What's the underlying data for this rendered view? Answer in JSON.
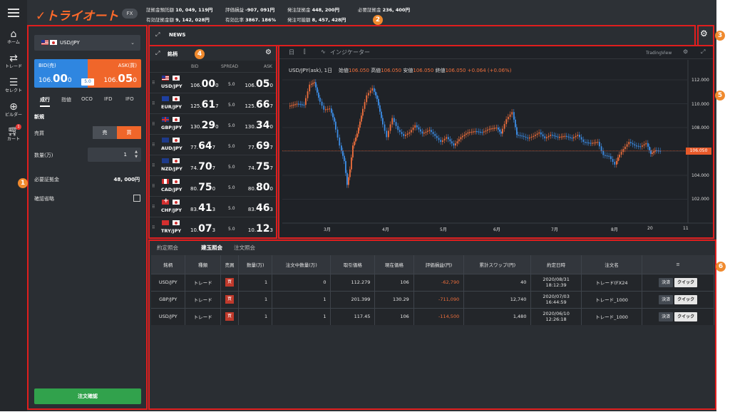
{
  "nav": {
    "items": [
      {
        "label": "ホーム",
        "icon": "home-icon"
      },
      {
        "label": "トレード",
        "icon": "trade-icon"
      },
      {
        "label": "セレクト",
        "icon": "select-icon"
      },
      {
        "label": "ビルダー",
        "icon": "builder-icon"
      },
      {
        "label": "カート",
        "icon": "cart-icon"
      }
    ],
    "cart_badge": "1"
  },
  "header": {
    "logo": "トライオート",
    "mode": "FX",
    "stats_line1": [
      {
        "label": "証拠金預託額",
        "value": "10, 049, 119円"
      },
      {
        "label": "評価損益",
        "value": "-907, 091円"
      },
      {
        "label": "発注証拠金",
        "value": "448, 200円"
      },
      {
        "label": "必要証拠金",
        "value": "236, 400円"
      }
    ],
    "stats_line2": [
      {
        "label": "有効証拠金額",
        "value": "9, 142, 028円"
      },
      {
        "label": "有効比率",
        "value": "3867. 186%"
      },
      {
        "label": "発注可能額",
        "value": "8, 457, 428円"
      }
    ]
  },
  "markers": [
    "1",
    "2",
    "3",
    "4",
    "5",
    "6"
  ],
  "order": {
    "pair": "USD/JPY",
    "bid_label": "BID(売)",
    "ask_label": "ASK(買)",
    "bid_price_prefix": "106.",
    "bid_price_big": "00",
    "bid_price_small": "0",
    "ask_price_prefix": "106.",
    "ask_price_big": "05",
    "ask_price_small": "0",
    "spread": "5.0",
    "tabs": [
      "成行",
      "指値",
      "OCO",
      "IFD",
      "IFO"
    ],
    "section": "新規",
    "side_label": "売買",
    "sell": "売",
    "buy": "買",
    "qty_label": "数量(万)",
    "qty_value": "1",
    "margin_label": "必要証拠金",
    "margin_value": "48, 000円",
    "skip_confirm_label": "確認省略",
    "confirm_button": "注文確認"
  },
  "news": {
    "title": "NEWS"
  },
  "rates": {
    "title": "銘柄",
    "columns": [
      "BID",
      "SPREAD",
      "ASK"
    ],
    "rows": [
      {
        "pair": "USD/JPY",
        "f1": "us",
        "f2": "jp",
        "bid_a": "106.",
        "bid_b": "00",
        "bid_c": "0",
        "spread": "5.0",
        "ask_a": "106.",
        "ask_b": "05",
        "ask_c": "0"
      },
      {
        "pair": "EUR/JPY",
        "f1": "eu",
        "f2": "jp",
        "bid_a": "125.",
        "bid_b": "61",
        "bid_c": "7",
        "spread": "5.0",
        "ask_a": "125.",
        "ask_b": "66",
        "ask_c": "7"
      },
      {
        "pair": "GBP/JPY",
        "f1": "gb",
        "f2": "jp",
        "bid_a": "130.",
        "bid_b": "29",
        "bid_c": "0",
        "spread": "5.0",
        "ask_a": "130.",
        "ask_b": "34",
        "ask_c": "0"
      },
      {
        "pair": "AUD/JPY",
        "f1": "au",
        "f2": "jp",
        "bid_a": "77.",
        "bid_b": "64",
        "bid_c": "7",
        "spread": "5.0",
        "ask_a": "77.",
        "ask_b": "69",
        "ask_c": "7"
      },
      {
        "pair": "NZD/JPY",
        "f1": "nz",
        "f2": "jp",
        "bid_a": "74.",
        "bid_b": "70",
        "bid_c": "7",
        "spread": "5.0",
        "ask_a": "74.",
        "ask_b": "75",
        "ask_c": "7"
      },
      {
        "pair": "CAD/JPY",
        "f1": "ca",
        "f2": "jp",
        "bid_a": "80.",
        "bid_b": "75",
        "bid_c": "0",
        "spread": "5.0",
        "ask_a": "80.",
        "ask_b": "80",
        "ask_c": "0"
      },
      {
        "pair": "CHF/JPY",
        "f1": "ch",
        "f2": "jp",
        "bid_a": "83.",
        "bid_b": "41",
        "bid_c": "3",
        "spread": "5.0",
        "ask_a": "83.",
        "ask_b": "46",
        "ask_c": "3"
      },
      {
        "pair": "TRY/JPY",
        "f1": "tr",
        "f2": "jp",
        "bid_a": "10.",
        "bid_b": "07",
        "bid_c": "3",
        "spread": "5.0",
        "ask_a": "10.",
        "ask_b": "12",
        "ask_c": "3"
      }
    ]
  },
  "chart": {
    "toolbar_period": "日",
    "toolbar_indicator": "インジケーター",
    "brand": "TradingView",
    "symbol": "USD/JPY(ask), 1日",
    "open_label": "始値",
    "open": "106.050",
    "high_label": "高値",
    "high": "106.050",
    "low_label": "安値",
    "low": "106.050",
    "close_label": "終値",
    "close": "106.050",
    "change": "+0.064 (+0.06%)",
    "current_tag": "106.050",
    "y_ticks": [
      "112.000",
      "110.000",
      "108.000",
      "106.000",
      "104.000",
      "102.000"
    ],
    "x_ticks": [
      "3月",
      "4月",
      "5月",
      "6月",
      "7月",
      "8月",
      "20",
      "11"
    ],
    "up_color": "#ef6f3c",
    "down_color": "#3c8de6"
  },
  "positions": {
    "tabs": [
      "約定照会",
      "建玉照会",
      "注文照会"
    ],
    "active_tab": 1,
    "columns": [
      "銘柄",
      "種類",
      "売買",
      "数量(万)",
      "注文中数量(万)",
      "取引価格",
      "現在価格",
      "評価損益(円)",
      "累計スワップ(円)",
      "約定日時",
      "注文名",
      ""
    ],
    "rows": [
      {
        "pair": "USD/JPY",
        "type": "トレード",
        "side": "買",
        "qty": "1",
        "pending": "0",
        "price": "112.279",
        "current": "106",
        "pnl": "-62,790",
        "swap": "40",
        "date": "2020/08/31",
        "time": "18:12:39",
        "name": "トレード(FX24",
        "settle": "決済",
        "quick": "クイック"
      },
      {
        "pair": "GBP/JPY",
        "type": "トレード",
        "side": "買",
        "qty": "1",
        "pending": "1",
        "price": "201.399",
        "current": "130.29",
        "pnl": "-711,090",
        "swap": "12,740",
        "date": "2020/07/03",
        "time": "16:44:59",
        "name": "トレード_1000",
        "settle": "決済",
        "quick": "クイック"
      },
      {
        "pair": "USD/JPY",
        "type": "トレード",
        "side": "買",
        "qty": "1",
        "pending": "1",
        "price": "117.45",
        "current": "106",
        "pnl": "-114,500",
        "swap": "1,480",
        "date": "2020/06/10",
        "time": "12:26:18",
        "name": "トレード_1000",
        "settle": "決済",
        "quick": "クイック"
      }
    ]
  }
}
